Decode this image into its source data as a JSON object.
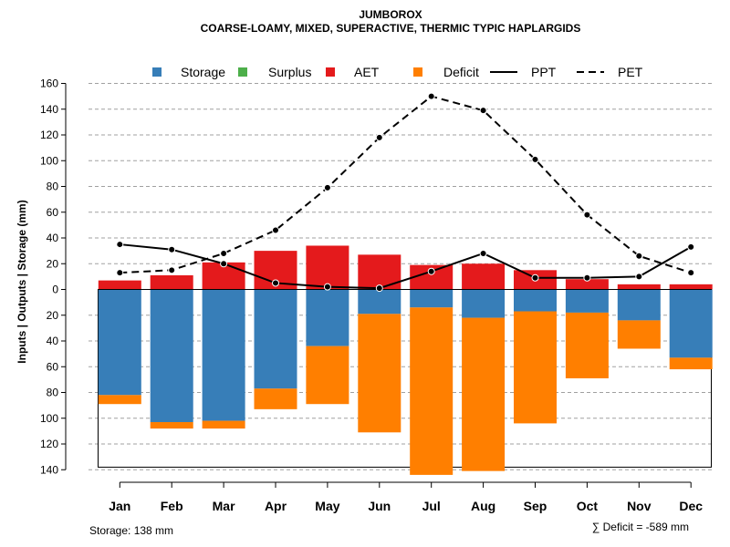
{
  "chart_data": {
    "type": "bar",
    "title": "JUMBOROX",
    "subtitle": "COARSE-LOAMY, MIXED, SUPERACTIVE, THERMIC TYPIC HAPLARGIDS",
    "ylabel": "Inputs | Outputs | Storage    (mm)",
    "categories": [
      "Jan",
      "Feb",
      "Mar",
      "Apr",
      "May",
      "Jun",
      "Jul",
      "Aug",
      "Sep",
      "Oct",
      "Nov",
      "Dec"
    ],
    "ylim": [
      -140,
      160
    ],
    "yticks": [
      160,
      140,
      120,
      100,
      80,
      60,
      40,
      20,
      0,
      -20,
      -40,
      -60,
      -80,
      -100,
      -120,
      -140
    ],
    "ytick_labels": [
      "160",
      "140",
      "120",
      "100",
      "80",
      "60",
      "40",
      "20",
      "0",
      "20",
      "40",
      "60",
      "80",
      "100",
      "120",
      "140"
    ],
    "capacity": 138,
    "legend": [
      {
        "name": "Storage",
        "kind": "box",
        "color": "#377eb8"
      },
      {
        "name": "Surplus",
        "kind": "box",
        "color": "#4daf4a"
      },
      {
        "name": "AET",
        "kind": "box",
        "color": "#e41a1c"
      },
      {
        "name": "Deficit",
        "kind": "box",
        "color": "#ff7f00"
      },
      {
        "name": "PPT",
        "kind": "solid",
        "color": "#000000"
      },
      {
        "name": "PET",
        "kind": "dashed",
        "color": "#000000"
      }
    ],
    "series": [
      {
        "name": "AET",
        "color": "#e41a1c",
        "values": [
          7,
          11,
          21,
          30,
          34,
          27,
          19,
          20,
          15,
          8,
          4,
          4
        ]
      },
      {
        "name": "Storage",
        "color": "#377eb8",
        "values": [
          82,
          103,
          102,
          77,
          44,
          19,
          14,
          22,
          17,
          18,
          24,
          53
        ]
      },
      {
        "name": "Deficit",
        "color": "#ff7f00",
        "values": [
          7,
          5,
          6,
          16,
          45,
          92,
          130,
          119,
          87,
          51,
          22,
          9
        ]
      },
      {
        "name": "Surplus",
        "color": "#4daf4a",
        "values": [
          0,
          0,
          0,
          0,
          0,
          0,
          0,
          0,
          0,
          0,
          0,
          0
        ]
      },
      {
        "name": "PPT",
        "color": "#000000",
        "values": [
          35,
          31,
          20,
          5,
          2,
          1,
          14,
          28,
          9,
          9,
          10,
          33
        ]
      },
      {
        "name": "PET",
        "color": "#000000",
        "values": [
          13,
          15,
          28,
          46,
          79,
          118,
          150,
          139,
          101,
          58,
          26,
          13
        ]
      }
    ]
  },
  "footer": {
    "storage_text": "Storage: 138 mm",
    "deficit_text": "∑ Deficit = -589 mm"
  }
}
